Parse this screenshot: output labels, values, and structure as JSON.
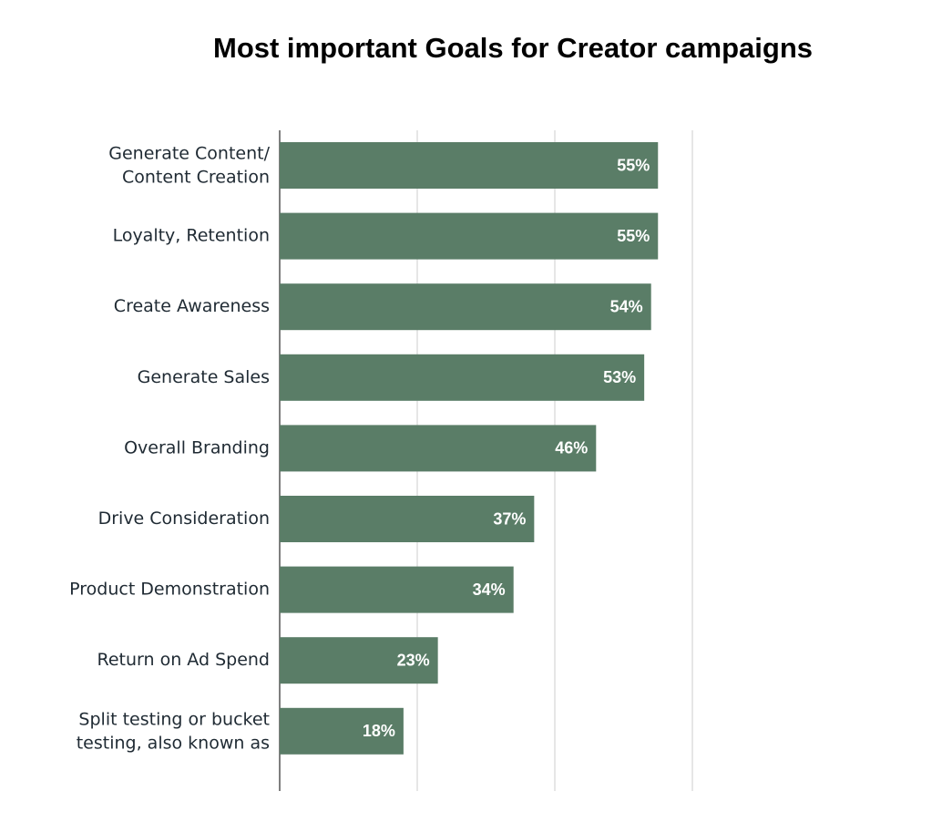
{
  "chart_data": {
    "type": "bar",
    "orientation": "horizontal",
    "title": "Most important Goals for Creator campaigns",
    "categories": [
      "Generate Content/\nContent Creation",
      "Loyalty, Retention",
      "Create Awareness",
      "Generate Sales",
      "Overall Branding",
      "Drive Consideration",
      "Product Demonstration",
      "Return on Ad Spend",
      "Split testing or bucket\ntesting, also known as"
    ],
    "values": [
      55,
      55,
      54,
      53,
      46,
      37,
      34,
      23,
      18
    ],
    "value_labels": [
      "55%",
      "55%",
      "54%",
      "53%",
      "46%",
      "37%",
      "34%",
      "23%",
      "18%"
    ],
    "color": "#5a7d67",
    "xlim": [
      0,
      60
    ],
    "xticks": [
      0,
      20,
      40,
      60
    ],
    "grid": true
  }
}
